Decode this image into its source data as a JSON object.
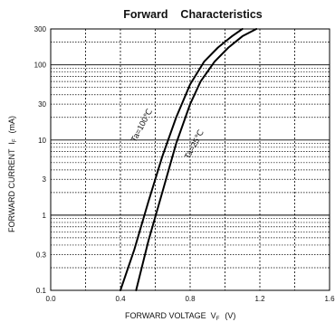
{
  "chart_data": {
    "type": "line",
    "title": "Forward    Characteristics",
    "xlabel": "FORWARD VOLTAGE  V",
    "xlabel_sub": "F",
    "xlabel_unit": "(V)",
    "ylabel": "FORWARD CURRENT  I",
    "ylabel_sub": "F",
    "ylabel_unit": "(mA)",
    "xlim": [
      0,
      1.6
    ],
    "ylim": [
      0.1,
      300
    ],
    "yscale": "log",
    "grid": true,
    "x_ticks": [
      0,
      0.4,
      0.8,
      1.2,
      1.6
    ],
    "x_tick_labels": [
      "0.0",
      "0.4",
      "0.8",
      "1.2",
      "1.6"
    ],
    "y_ticks": [
      0.1,
      0.3,
      1,
      3,
      10,
      30,
      100,
      300
    ],
    "y_tick_labels": [
      "0.1",
      "0.3",
      "1",
      "3",
      "10",
      "30",
      "100",
      "300"
    ],
    "series": [
      {
        "name": "Ta=100℃",
        "x": [
          0.4,
          0.48,
          0.56,
          0.64,
          0.72,
          0.8,
          0.88,
          0.96,
          1.04,
          1.1
        ],
        "y": [
          0.1,
          0.35,
          1.5,
          6,
          20,
          55,
          110,
          170,
          240,
          300
        ]
      },
      {
        "name": "Ta=25℃",
        "x": [
          0.49,
          0.56,
          0.64,
          0.72,
          0.8,
          0.86,
          0.94,
          1.02,
          1.1,
          1.18
        ],
        "y": [
          0.1,
          0.45,
          2,
          9,
          30,
          60,
          110,
          170,
          240,
          300
        ]
      }
    ]
  }
}
